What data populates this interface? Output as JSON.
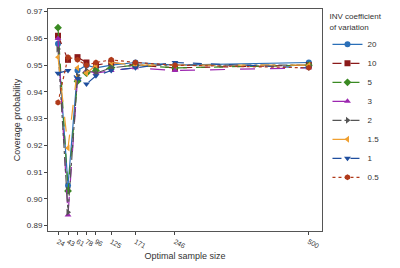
{
  "chart_data": {
    "type": "line",
    "x_label": "Optimal sample size",
    "y_label": "Coverage probability",
    "legend_title": "INV coefficient of variation",
    "legend": "right",
    "grid": false,
    "x": [
      24,
      43,
      61,
      78,
      96,
      125,
      171,
      246,
      500
    ],
    "xlim": [
      5,
      525
    ],
    "xticks": [
      24,
      43,
      61,
      78,
      96,
      125,
      171,
      246,
      500
    ],
    "ylim": [
      0.888,
      0.971
    ],
    "yticks": [
      0.89,
      {
        "value": 0.9,
        "label": "0.90"
      },
      0.91,
      0.92,
      0.93,
      0.94,
      0.95,
      0.96,
      0.97
    ],
    "series": [
      {
        "name": "20",
        "color": "#2a6fb8",
        "marker": "circle",
        "line_style": "solid",
        "values": [
          0.958,
          0.905,
          0.948,
          0.95,
          0.949,
          0.95,
          0.951,
          0.95,
          0.951
        ]
      },
      {
        "name": "10",
        "color": "#8b1a1a",
        "marker": "square",
        "line_style": "dash",
        "values": [
          0.961,
          0.952,
          0.953,
          0.951,
          0.95,
          0.951,
          0.95,
          0.949,
          0.95
        ]
      },
      {
        "name": "5",
        "color": "#3a8a22",
        "marker": "diamond",
        "line_style": "dash",
        "values": [
          0.964,
          0.903,
          0.944,
          0.947,
          0.948,
          0.949,
          0.95,
          0.949,
          0.95
        ]
      },
      {
        "name": "3",
        "color": "#9c27b0",
        "marker": "triangle-up",
        "line_style": "longdash",
        "values": [
          0.96,
          0.894,
          0.945,
          0.948,
          0.947,
          0.948,
          0.949,
          0.948,
          0.949
        ]
      },
      {
        "name": "2",
        "color": "#555555",
        "marker": "triangle-right",
        "line_style": "dashdot",
        "values": [
          0.956,
          0.895,
          0.946,
          0.948,
          0.947,
          0.949,
          0.95,
          0.95,
          0.95
        ]
      },
      {
        "name": "1.5",
        "color": "#f0a030",
        "marker": "triangle-left",
        "line_style": "longdash",
        "values": [
          0.953,
          0.919,
          0.949,
          0.947,
          0.95,
          0.951,
          0.95,
          0.95,
          0.95
        ]
      },
      {
        "name": "1",
        "color": "#1f4e9e",
        "marker": "triangle-down",
        "line_style": "dash",
        "values": [
          0.947,
          0.948,
          0.945,
          0.943,
          0.946,
          0.948,
          0.949,
          0.951,
          0.949
        ]
      },
      {
        "name": "0.5",
        "color": "#b03a1a",
        "marker": "hexagon",
        "line_style": "dot",
        "values": [
          0.936,
          0.953,
          0.952,
          0.95,
          0.951,
          0.952,
          0.951,
          0.95,
          0.949
        ]
      }
    ]
  }
}
